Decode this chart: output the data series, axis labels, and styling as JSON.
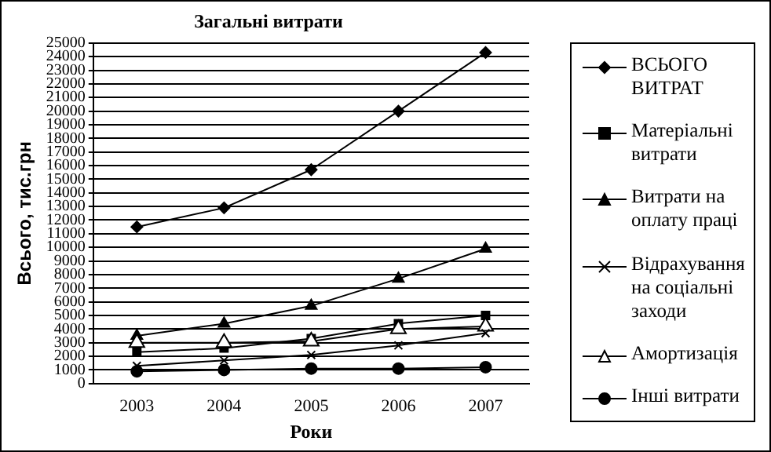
{
  "chart_data": {
    "type": "line",
    "title": "Загальні витрати",
    "xlabel": "Роки",
    "ylabel": "Всього, тис.грн",
    "categories": [
      "2003",
      "2004",
      "2005",
      "2006",
      "2007"
    ],
    "ylim": [
      0,
      25000
    ],
    "yticks": [
      0,
      1000,
      2000,
      3000,
      4000,
      5000,
      6000,
      7000,
      8000,
      9000,
      10000,
      11000,
      12000,
      13000,
      14000,
      15000,
      16000,
      17000,
      18000,
      19000,
      20000,
      21000,
      22000,
      23000,
      24000,
      25000
    ],
    "grid": "y",
    "legend": "right",
    "series": [
      {
        "name": "ВСЬОГО ВИТРАТ",
        "color": "#000000",
        "marker": "diamond",
        "values": [
          11500,
          12900,
          15700,
          20000,
          24300
        ]
      },
      {
        "name": "Матеріальні витрати",
        "color": "#000000",
        "marker": "square",
        "values": [
          2300,
          2600,
          3300,
          4400,
          5000
        ]
      },
      {
        "name": "Витрати на оплату праці",
        "color": "#000000",
        "marker": "triangle",
        "values": [
          3500,
          4400,
          5700,
          7700,
          9900
        ]
      },
      {
        "name": "Відрахування на соціальні заходи",
        "color": "#000000",
        "marker": "cross",
        "values": [
          1300,
          1700,
          2100,
          2800,
          3700
        ]
      },
      {
        "name": "Амортизація",
        "color": "#000000",
        "marker": "triangle-open",
        "values": [
          3000,
          3000,
          3100,
          4000,
          4200
        ]
      },
      {
        "name": "Інші витрати",
        "color": "#000000",
        "marker": "circle",
        "values": [
          900,
          1000,
          1100,
          1100,
          1200
        ]
      }
    ]
  }
}
